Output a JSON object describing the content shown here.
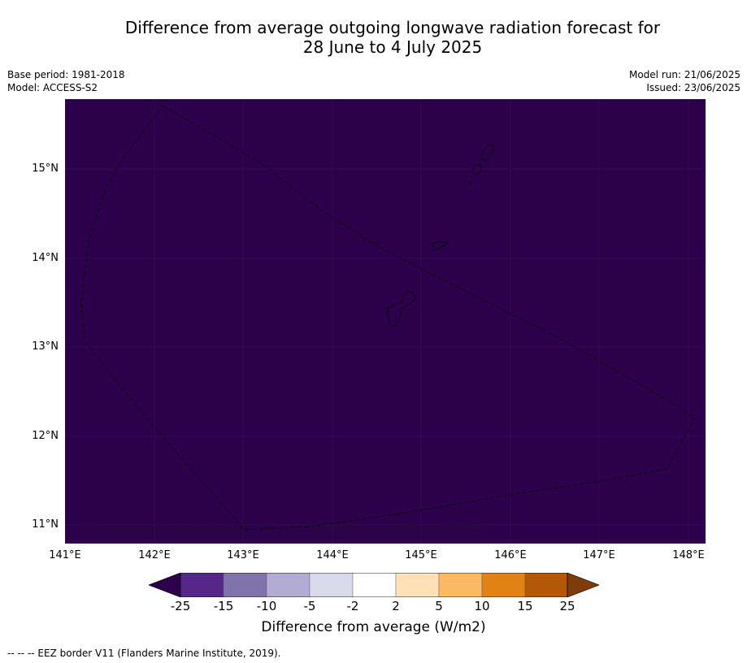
{
  "title_line1": "Difference from average outgoing longwave radiation forecast for",
  "title_line2": "28 June to 4 July 2025",
  "meta_left": {
    "base_period": "Base period: 1981-2018",
    "model": "Model: ACCESS-S2"
  },
  "meta_right": {
    "model_run": "Model run: 21/06/2025",
    "issued": "Issued: 23/06/2025"
  },
  "map": {
    "fill_color": "#2d004b",
    "lat_labels": [
      "15°N",
      "14°N",
      "13°N",
      "12°N",
      "11°N"
    ],
    "lon_labels": [
      "141°E",
      "142°E",
      "143°E",
      "144°E",
      "145°E",
      "146°E",
      "147°E",
      "148°E"
    ],
    "copyright": "© Commonwealth of Australia 2025, Bureau of Meteorology, supported by COSPPac"
  },
  "colorbar": {
    "tick_labels": [
      "-25",
      "-15",
      "-10",
      "-5",
      "-2",
      "2",
      "5",
      "10",
      "15",
      "25"
    ],
    "colors": [
      "#2d004b",
      "#542788",
      "#8073ac",
      "#b2abd2",
      "#d8daeb",
      "#ffffff",
      "#fee0b6",
      "#fdb863",
      "#e08214",
      "#b35806",
      "#7f3b08"
    ],
    "label": "Difference from average (W/m2)"
  },
  "footnote": "--  --  -- EEZ border V11 (Flanders Marine Institute, 2019)."
}
